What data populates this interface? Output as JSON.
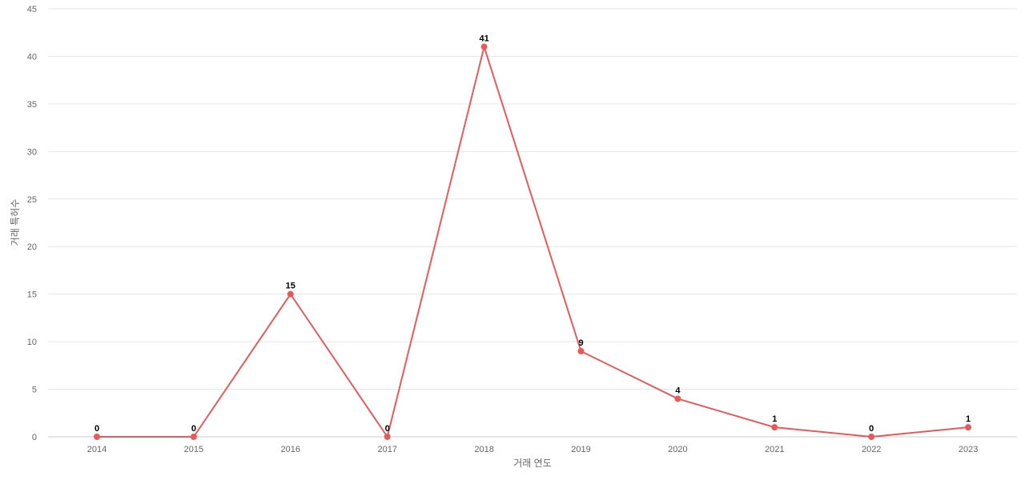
{
  "chart_data": {
    "type": "line",
    "title": "",
    "xlabel": "거래 연도",
    "ylabel": "거래 특허수",
    "x": [
      "2014",
      "2015",
      "2016",
      "2017",
      "2018",
      "2019",
      "2020",
      "2021",
      "2022",
      "2023"
    ],
    "series": [
      {
        "values": [
          0,
          0,
          15,
          0,
          41,
          9,
          4,
          1,
          0,
          1
        ],
        "color": "#e85a5a"
      }
    ],
    "ylim": [
      0,
      45
    ],
    "yticks": [
      0,
      5,
      10,
      15,
      20,
      25,
      30,
      35,
      40,
      45
    ],
    "grid": true,
    "legend": "none",
    "data_labels": true
  }
}
